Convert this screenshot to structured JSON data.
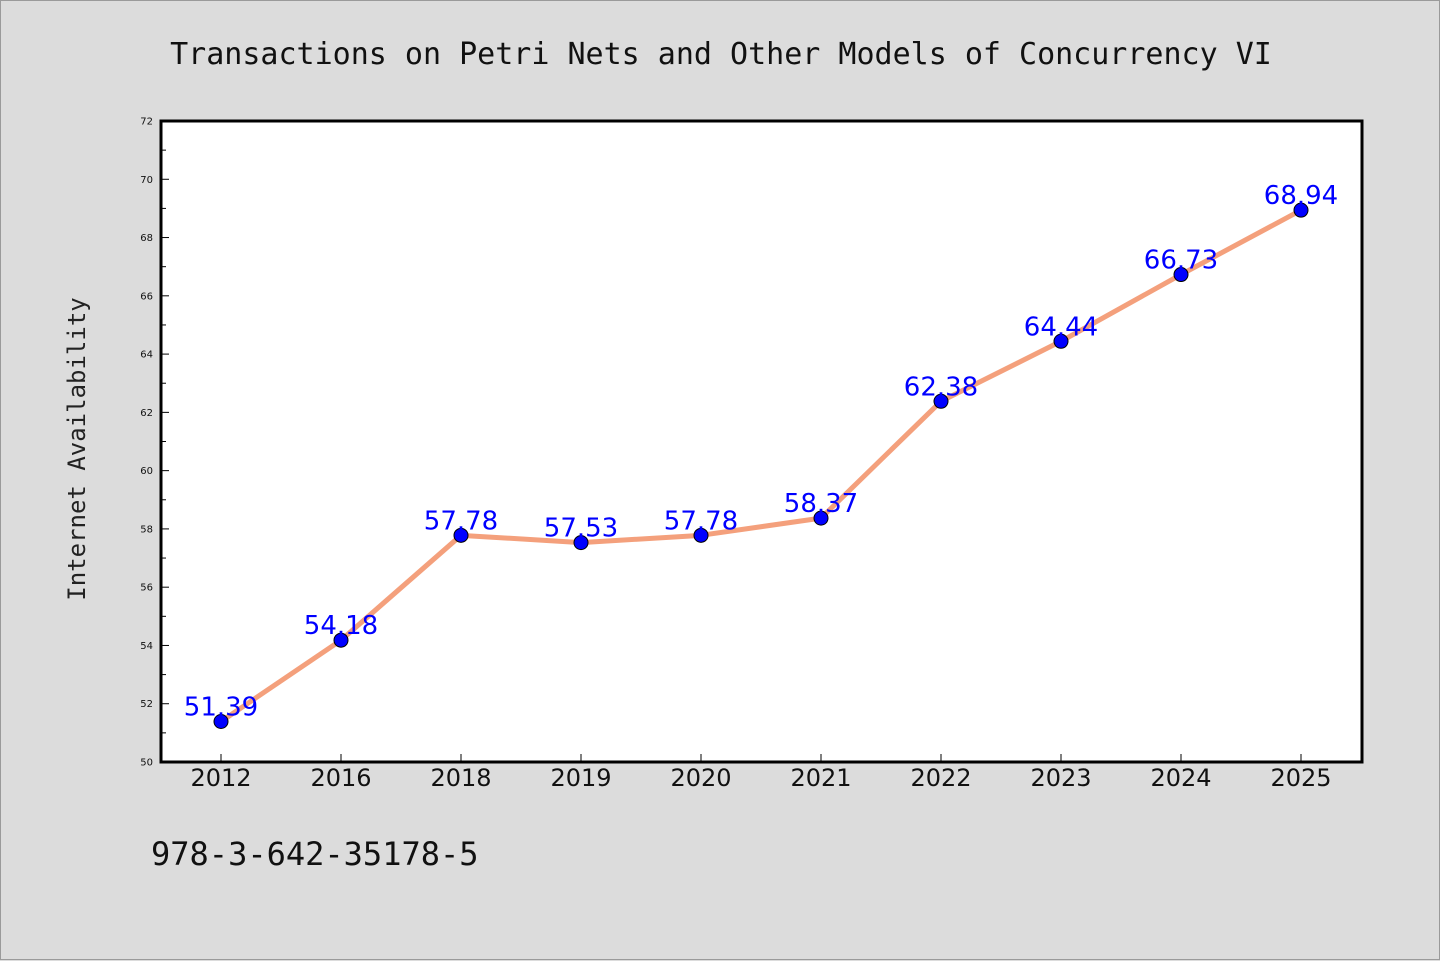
{
  "chart_data": {
    "type": "line",
    "title": "Transactions on Petri Nets and Other Models of Concurrency VI",
    "xlabel": "",
    "ylabel": "Internet Availability",
    "categories": [
      "2012",
      "2016",
      "2018",
      "2019",
      "2020",
      "2021",
      "2022",
      "2023",
      "2024",
      "2025"
    ],
    "series": [
      {
        "values": [
          51.39,
          54.18,
          57.78,
          57.53,
          57.78,
          58.37,
          62.38,
          64.44,
          66.73,
          68.94
        ],
        "labels": [
          "51.39",
          "54.18",
          "57.78",
          "57.53",
          "57.78",
          "58.37",
          "62.38",
          "64.44",
          "66.73",
          "68.94"
        ]
      }
    ],
    "ylim": [
      50,
      72
    ],
    "yticks": [
      "50",
      "52",
      "54",
      "56",
      "58",
      "60",
      "62",
      "64",
      "66",
      "68",
      "70",
      "72"
    ],
    "grid": false,
    "colors": {
      "line": "#f4a07c",
      "marker": "#0000ff",
      "labels": "#0000ff",
      "background": "#dcdcdc",
      "plot_area": "#ffffff"
    }
  },
  "footer": {
    "isbn": "978-3-642-35178-5"
  }
}
